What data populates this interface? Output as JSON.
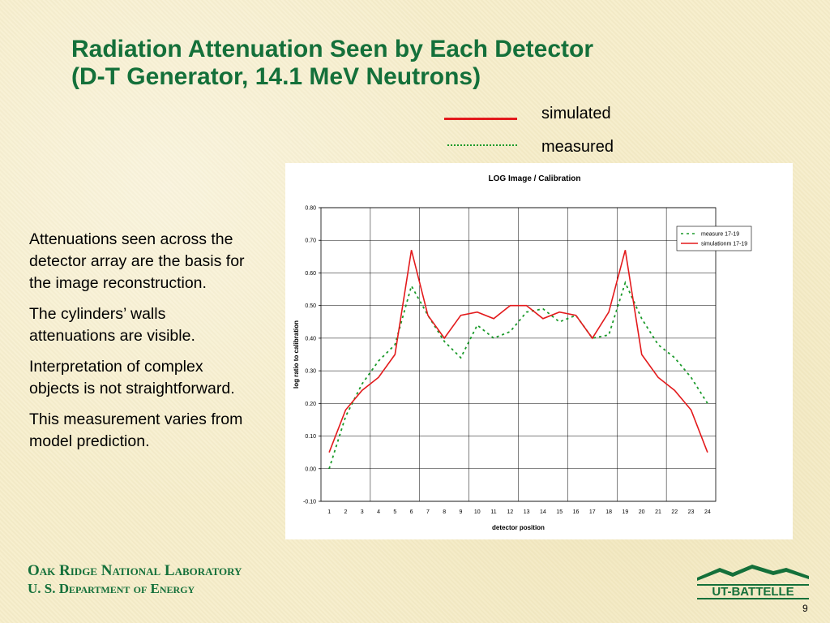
{
  "slide": {
    "title_line1": "Radiation Attenuation Seen by Each Detector",
    "title_line2": "(D-T Generator, 14.1 MeV Neutrons)",
    "legend": {
      "simulated": "simulated",
      "measured": "measured"
    },
    "bullets": [
      "Attenuations seen across the detector array are the basis for the image reconstruction.",
      "The cylinders’ walls attenuations are visible.",
      "Interpretation of complex objects is not straightforward.",
      "This measurement varies from model prediction."
    ],
    "footer_line1": "Oak Ridge National Laboratory",
    "footer_line2": "U. S. Department of Energy",
    "logo_text": "UT-BATTELLE",
    "page_number": "9"
  },
  "colors": {
    "title": "#14703a",
    "simulated": "#e31a1c",
    "measured": "#1a9a2a",
    "gridline": "#000000"
  },
  "chart_data": {
    "type": "line",
    "title": "LOG Image / Calibration",
    "xlabel": "detector position",
    "ylabel": "log ratio to calibration",
    "x": [
      1,
      2,
      3,
      4,
      5,
      6,
      7,
      8,
      9,
      10,
      11,
      12,
      13,
      14,
      15,
      16,
      17,
      18,
      19,
      20,
      21,
      22,
      23,
      24
    ],
    "ylim": [
      -0.1,
      0.8
    ],
    "yticks": [
      "-0.10",
      "0.00",
      "0.10",
      "0.20",
      "0.30",
      "0.40",
      "0.50",
      "0.60",
      "0.70",
      "0.80"
    ],
    "grid": true,
    "legend_position": "top-right",
    "series": [
      {
        "name": "measure 17-19",
        "style": "dotted",
        "color": "#1a9a2a",
        "values": [
          0.0,
          0.16,
          0.26,
          0.33,
          0.38,
          0.56,
          0.47,
          0.39,
          0.34,
          0.44,
          0.4,
          0.42,
          0.48,
          0.49,
          0.45,
          0.47,
          0.4,
          0.41,
          0.57,
          0.46,
          0.38,
          0.34,
          0.28,
          0.2
        ]
      },
      {
        "name": "simulationm 17-19",
        "style": "solid",
        "color": "#e31a1c",
        "values": [
          0.05,
          0.18,
          0.24,
          0.28,
          0.35,
          0.67,
          0.47,
          0.4,
          0.47,
          0.48,
          0.46,
          0.5,
          0.5,
          0.46,
          0.48,
          0.47,
          0.4,
          0.48,
          0.67,
          0.35,
          0.28,
          0.24,
          0.18,
          0.05
        ]
      }
    ]
  }
}
